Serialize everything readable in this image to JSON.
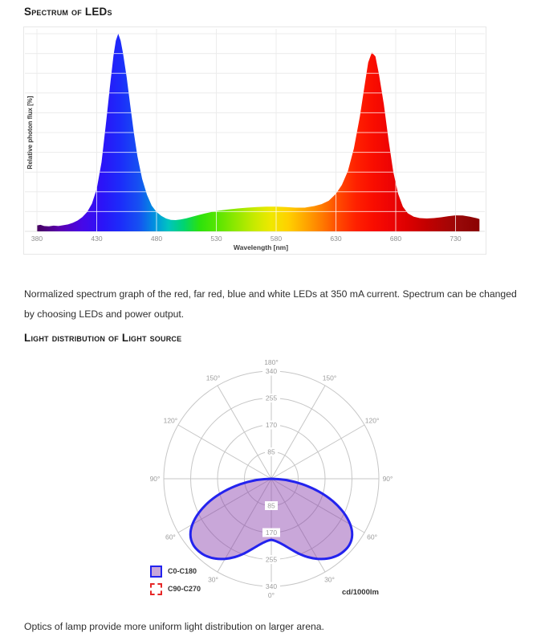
{
  "headings": {
    "spectrum": "Spectrum of LEDs",
    "distribution": "Light distribution of Light source"
  },
  "captions": {
    "spectrum": "Normalized spectrum graph of the red, far red, blue and white LEDs at 350 mA current. Spectrum can be changed by choosing LEDs and power output.",
    "optics": "Optics of lamp provide more uniform light distribution on larger arena."
  },
  "chart_data": [
    {
      "id": "led-spectrum",
      "type": "area",
      "title": "",
      "xlabel": "Wavelength [nm]",
      "ylabel": "Relative photon flux [%]",
      "x_ticks": [
        380,
        430,
        480,
        530,
        580,
        630,
        680,
        730
      ],
      "x_range": [
        380,
        756
      ],
      "y_range": [
        0,
        1
      ],
      "grid": "on",
      "y_gridline_count": 10,
      "series": [
        {
          "name": "normalized-spectrum",
          "points": [
            [
              380,
              0.03
            ],
            [
              383,
              0.033
            ],
            [
              386,
              0.027
            ],
            [
              390,
              0.025
            ],
            [
              394,
              0.029
            ],
            [
              398,
              0.027
            ],
            [
              402,
              0.031
            ],
            [
              406,
              0.035
            ],
            [
              410,
              0.043
            ],
            [
              414,
              0.055
            ],
            [
              418,
              0.072
            ],
            [
              422,
              0.098
            ],
            [
              426,
              0.14
            ],
            [
              430,
              0.215
            ],
            [
              434,
              0.35
            ],
            [
              438,
              0.56
            ],
            [
              441,
              0.73
            ],
            [
              444,
              0.89
            ],
            [
              446,
              0.965
            ],
            [
              448,
              1.0
            ],
            [
              450,
              0.965
            ],
            [
              452,
              0.9
            ],
            [
              455,
              0.78
            ],
            [
              458,
              0.64
            ],
            [
              461,
              0.5
            ],
            [
              464,
              0.38
            ],
            [
              468,
              0.265
            ],
            [
              472,
              0.185
            ],
            [
              476,
              0.13
            ],
            [
              480,
              0.098
            ],
            [
              484,
              0.078
            ],
            [
              488,
              0.065
            ],
            [
              492,
              0.058
            ],
            [
              496,
              0.057
            ],
            [
              500,
              0.06
            ],
            [
              505,
              0.066
            ],
            [
              510,
              0.074
            ],
            [
              515,
              0.082
            ],
            [
              520,
              0.09
            ],
            [
              526,
              0.098
            ],
            [
              532,
              0.105
            ],
            [
              540,
              0.111
            ],
            [
              548,
              0.116
            ],
            [
              556,
              0.12
            ],
            [
              564,
              0.123
            ],
            [
              572,
              0.125
            ],
            [
              580,
              0.125
            ],
            [
              588,
              0.123
            ],
            [
              596,
              0.12
            ],
            [
              604,
              0.12
            ],
            [
              612,
              0.128
            ],
            [
              618,
              0.138
            ],
            [
              624,
              0.155
            ],
            [
              630,
              0.19
            ],
            [
              635,
              0.235
            ],
            [
              640,
              0.305
            ],
            [
              645,
              0.42
            ],
            [
              650,
              0.58
            ],
            [
              654,
              0.74
            ],
            [
              657,
              0.855
            ],
            [
              660,
              0.905
            ],
            [
              663,
              0.885
            ],
            [
              666,
              0.795
            ],
            [
              670,
              0.645
            ],
            [
              674,
              0.46
            ],
            [
              678,
              0.3
            ],
            [
              682,
              0.19
            ],
            [
              686,
              0.125
            ],
            [
              690,
              0.092
            ],
            [
              695,
              0.074
            ],
            [
              700,
              0.067
            ],
            [
              706,
              0.065
            ],
            [
              712,
              0.067
            ],
            [
              718,
              0.071
            ],
            [
              724,
              0.077
            ],
            [
              730,
              0.081
            ],
            [
              736,
              0.08
            ],
            [
              742,
              0.074
            ],
            [
              748,
              0.066
            ],
            [
              750,
              0.062
            ]
          ]
        }
      ],
      "gradient_stops": [
        [
          380,
          "#45005e"
        ],
        [
          400,
          "#5a00b4"
        ],
        [
          418,
          "#4608e8"
        ],
        [
          435,
          "#2a14f8"
        ],
        [
          450,
          "#1c2cfa"
        ],
        [
          465,
          "#1650f2"
        ],
        [
          478,
          "#0090e0"
        ],
        [
          490,
          "#00c4c0"
        ],
        [
          503,
          "#00d470"
        ],
        [
          516,
          "#2ce20c"
        ],
        [
          532,
          "#5ce600"
        ],
        [
          548,
          "#96e800"
        ],
        [
          562,
          "#c8ea00"
        ],
        [
          576,
          "#f0e800"
        ],
        [
          590,
          "#ffd000"
        ],
        [
          604,
          "#ffa800"
        ],
        [
          618,
          "#ff7c00"
        ],
        [
          632,
          "#ff4a00"
        ],
        [
          646,
          "#ff2200"
        ],
        [
          660,
          "#fa0e00"
        ],
        [
          675,
          "#ee0404"
        ],
        [
          690,
          "#dc0000"
        ],
        [
          705,
          "#c40000"
        ],
        [
          720,
          "#ac0404"
        ],
        [
          735,
          "#960808"
        ],
        [
          750,
          "#8b0000"
        ]
      ],
      "colors": {
        "gridline": "#ececec",
        "gridline_on_fill": "rgba(255,255,255,0.75)",
        "tick_label": "#8d8d8d",
        "axis_label": "#3d3d3d"
      }
    },
    {
      "id": "light-distribution",
      "type": "polar",
      "unit": "cd/1000lm",
      "ring_values": [
        85,
        170,
        255,
        340
      ],
      "angle_labels_deg": [
        0,
        30,
        60,
        90,
        120,
        150,
        180
      ],
      "legend": [
        {
          "label": "C0-C180",
          "stroke": "#2323ee",
          "fill": "rgba(135,60,170,0.45)",
          "dashed": false
        },
        {
          "label": "C90-C270",
          "stroke": "#e62626",
          "fill": "#ffffff",
          "dashed": true
        }
      ],
      "series": [
        {
          "name": "C0-C180",
          "symmetric": true,
          "points_deg_value": [
            [
              0,
              193
            ],
            [
              5,
              199
            ],
            [
              10,
              211
            ],
            [
              15,
              229
            ],
            [
              20,
              251
            ],
            [
              25,
              273
            ],
            [
              30,
              292
            ],
            [
              35,
              308
            ],
            [
              40,
              319
            ],
            [
              45,
              324
            ],
            [
              50,
              323
            ],
            [
              55,
              312
            ],
            [
              60,
              288
            ],
            [
              65,
              252
            ],
            [
              70,
              207
            ],
            [
              75,
              155
            ],
            [
              80,
              100
            ],
            [
              85,
              48
            ],
            [
              90,
              0
            ]
          ]
        }
      ],
      "colors": {
        "grid": "#c6c6c6",
        "labels": "#9d9d9d",
        "curve_stroke": "#2323ee",
        "curve_fill": "rgba(135,60,170,0.45)"
      }
    }
  ]
}
